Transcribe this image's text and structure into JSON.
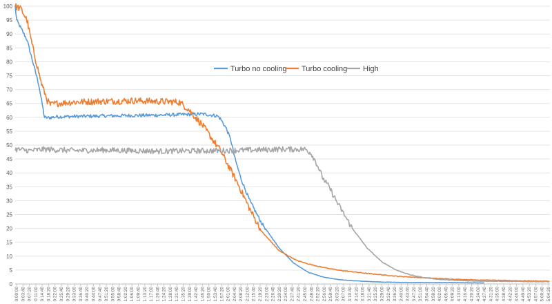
{
  "chart_data": {
    "type": "line",
    "title": "",
    "xlabel": "",
    "ylabel": "",
    "ylim": [
      0,
      100
    ],
    "y_ticks": [
      0,
      5,
      10,
      15,
      20,
      25,
      30,
      35,
      40,
      45,
      50,
      55,
      60,
      65,
      70,
      75,
      80,
      85,
      90,
      95,
      100
    ],
    "x_range_seconds": [
      0,
      18240
    ],
    "grid": "horizontal",
    "legend_position": "top-center",
    "x_tick_labels": [
      "0:00:00",
      "0:03:40",
      "0:07:20",
      "0:11:00",
      "0:14:40",
      "0:18:20",
      "0:22:00",
      "0:25:40",
      "0:29:20",
      "0:33:00",
      "0:36:40",
      "0:40:20",
      "0:44:00",
      "0:47:40",
      "0:51:20",
      "0:55:00",
      "0:58:40",
      "1:02:20",
      "1:06:00",
      "1:09:40",
      "1:13:20",
      "1:17:00",
      "1:20:40",
      "1:24:20",
      "1:28:00",
      "1:31:40",
      "1:35:20",
      "1:39:00",
      "1:42:40",
      "1:46:20",
      "1:50:00",
      "1:53:40",
      "1:57:20",
      "2:01:00",
      "2:04:40",
      "2:08:20",
      "2:12:00",
      "2:15:40",
      "2:19:20",
      "2:23:00",
      "2:26:40",
      "2:30:20",
      "2:34:00",
      "2:37:40",
      "2:41:20",
      "2:45:00",
      "2:48:40",
      "2:52:20",
      "2:56:00",
      "2:59:40",
      "3:03:20",
      "3:07:00",
      "3:10:40",
      "3:14:20",
      "3:18:00",
      "3:21:40",
      "3:25:20",
      "3:29:00",
      "3:32:40",
      "3:36:20",
      "3:40:00",
      "3:43:40",
      "3:47:20",
      "3:51:00",
      "3:54:40",
      "3:58:20",
      "4:02:00",
      "4:05:40",
      "4:09:20",
      "4:13:00",
      "4:16:40",
      "4:20:20",
      "4:24:00",
      "4:27:40",
      "4:31:20",
      "4:35:00",
      "4:38:40",
      "4:42:20",
      "4:46:00",
      "4:49:40",
      "4:53:20",
      "4:57:00",
      "5:00:40",
      "5:04:20"
    ],
    "series": [
      {
        "name": "Turbo no cooling",
        "color": "#5B9BD5",
        "noise": 0.6,
        "x": [
          0,
          50,
          150,
          400,
          800,
          1000,
          1100,
          1400,
          3000,
          5000,
          6400,
          6900,
          7000,
          7200,
          7350,
          7500,
          7700,
          8000,
          8400,
          9000,
          9500,
          10000,
          10500,
          11000,
          11500,
          12000,
          12500,
          13000,
          13500,
          14000,
          14500,
          15000,
          15500,
          16000
        ],
        "values": [
          100,
          95,
          93,
          88,
          72,
          60,
          59.8,
          60.2,
          60.5,
          60.8,
          61.2,
          60.5,
          59.5,
          56,
          52,
          45,
          38,
          30,
          22,
          13,
          7.5,
          4.2,
          2.5,
          1.6,
          1.2,
          0.9,
          0.7,
          0.6,
          0.5,
          0.5,
          0.5,
          0.5,
          0.4,
          0.4
        ]
      },
      {
        "name": "Turbo cooling",
        "color": "#ED7D31",
        "noise": 1.2,
        "x": [
          0,
          200,
          400,
          600,
          900,
          1100,
          1200,
          1400,
          2000,
          4000,
          5600,
          5900,
          6400,
          6800,
          7000,
          7150,
          7250,
          7400,
          7600,
          8000,
          8400,
          9000,
          9600,
          10000,
          10400,
          11000,
          12000,
          13000,
          14000,
          15000,
          16000,
          17000,
          18240
        ],
        "values": [
          100,
          99,
          95,
          85,
          72,
          66,
          64.5,
          65,
          65.5,
          66,
          65.5,
          63,
          57,
          51,
          48,
          45,
          43,
          40,
          36,
          27,
          19,
          12,
          8.5,
          7.2,
          6.2,
          5,
          3.8,
          2.8,
          2.2,
          1.7,
          1.4,
          1.2,
          1.0
        ]
      },
      {
        "name": "High",
        "color": "#A5A5A5",
        "noise": 1.0,
        "x": [
          0,
          500,
          1000,
          2000,
          3000,
          5000,
          7000,
          8000,
          9000,
          9900,
          10100,
          10300,
          10500,
          10700,
          10800,
          11000,
          11500,
          12000,
          12500,
          13000,
          13500,
          14000,
          14500,
          15000,
          15500,
          16000,
          17000,
          18240
        ],
        "values": [
          48.5,
          48,
          48.5,
          48,
          48.2,
          47.8,
          48,
          48.2,
          48.5,
          48.5,
          47,
          43,
          38,
          35,
          33,
          29,
          20,
          13,
          8,
          5,
          3.2,
          2.2,
          1.6,
          1.3,
          1.1,
          1.0,
          0.9,
          0.8
        ]
      }
    ]
  }
}
